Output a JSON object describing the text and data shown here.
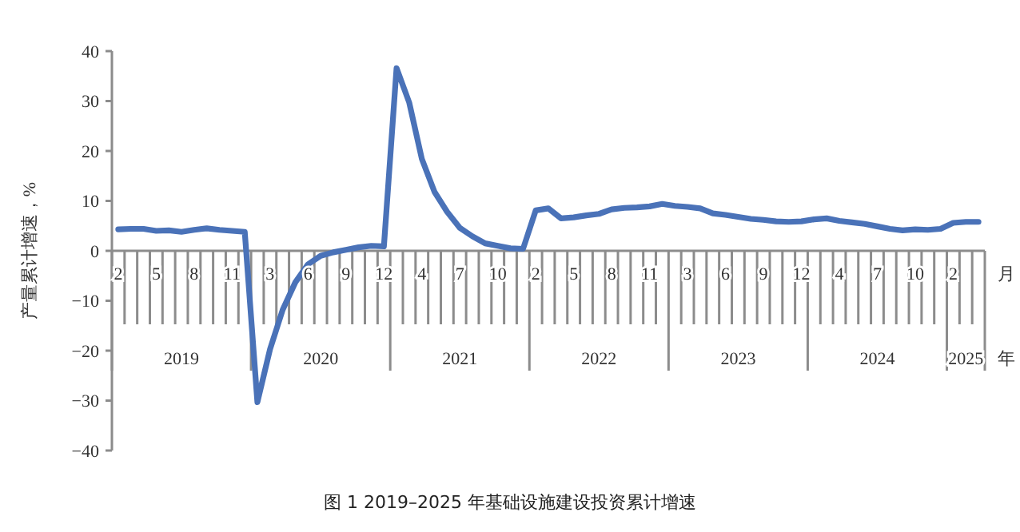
{
  "chart_data": {
    "type": "line",
    "title": "图 1 2019–2025 年基础设施建设投资累计增速",
    "ylabel": "产量累计增速，%",
    "xlabel": "月",
    "annotations": [
      "2019",
      "2020",
      "2021",
      "2022",
      "2023",
      "2024",
      "2025",
      "年"
    ],
    "categories": [
      "2",
      null,
      null,
      "5",
      null,
      null,
      "8",
      null,
      null,
      "11",
      null,
      null,
      "3",
      null,
      null,
      "6",
      null,
      null,
      "9",
      null,
      null,
      "12",
      null,
      null,
      "4",
      null,
      null,
      "7",
      null,
      null,
      "10",
      null,
      null,
      "2",
      null,
      null,
      "5",
      null,
      null,
      "8",
      null,
      null,
      "11",
      null,
      null,
      "3",
      null,
      null,
      "6",
      null,
      null,
      "9",
      null,
      null,
      "12",
      null,
      null,
      "4",
      null,
      null,
      "7",
      null,
      null,
      "10",
      null,
      null,
      "2",
      null,
      null
    ],
    "series": [
      {
        "color": "#4a72b8",
        "values": [
          4.3,
          4.4,
          4.4,
          4.0,
          4.1,
          3.8,
          4.2,
          4.5,
          4.2,
          4.0,
          3.8,
          -30.3,
          -19.7,
          -11.8,
          -6.3,
          -2.7,
          -1.0,
          -0.3,
          0.2,
          0.7,
          1.0,
          0.9,
          36.6,
          29.7,
          18.4,
          11.8,
          7.8,
          4.6,
          2.9,
          1.5,
          1.0,
          0.5,
          0.4,
          8.1,
          8.5,
          6.5,
          6.7,
          7.1,
          7.4,
          8.3,
          8.6,
          8.7,
          8.9,
          9.4,
          9.0,
          8.8,
          8.5,
          7.5,
          7.2,
          6.8,
          6.4,
          6.2,
          5.9,
          5.8,
          5.9,
          6.3,
          6.5,
          6.0,
          5.7,
          5.4,
          4.9,
          4.4,
          4.1,
          4.3,
          4.2,
          4.4,
          5.6,
          5.8,
          5.8
        ]
      }
    ],
    "ylim": [
      -40,
      40
    ],
    "yticks": [
      -40,
      -30,
      -20,
      -10,
      0,
      10,
      20,
      30,
      40
    ],
    "grid": "x",
    "marker": "none",
    "line_style": "solid"
  }
}
